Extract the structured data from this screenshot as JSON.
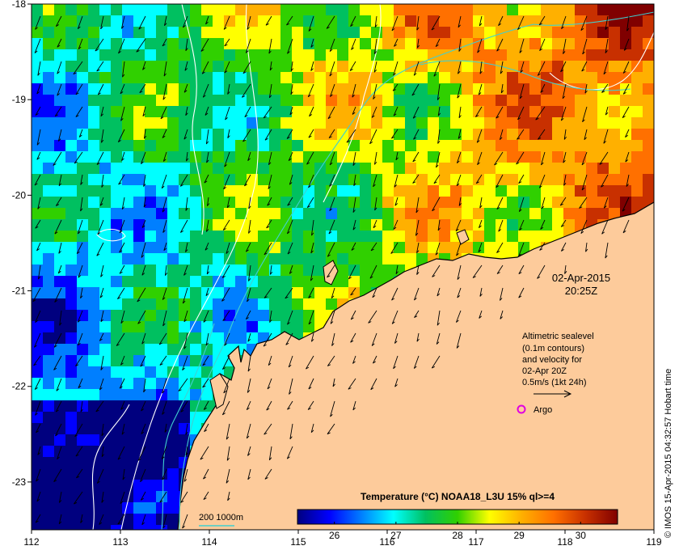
{
  "map": {
    "lon_range": [
      112,
      119
    ],
    "lat_range": [
      -23.5,
      -18
    ],
    "x_ticks": [
      "112",
      "113",
      "114",
      "115",
      "116",
      "117",
      "118",
      "119"
    ],
    "y_ticks": [
      "-18",
      "-19",
      "-20",
      "-21",
      "-22",
      "-23"
    ],
    "timestamp": {
      "date": "02-Apr-2015",
      "time": "20:25Z"
    },
    "legend_lines": [
      "Altimetric sealevel",
      "(0.1m contours)",
      "and velocity for",
      "02-Apr 20Z",
      "0.5m/s (1kt 24h)"
    ],
    "argo_label": "Argo",
    "depth_label": "200  1000m",
    "credit": "© IMOS 15-Apr-2015 04:32:57 Hobart time",
    "land_color": "#fdcb9b",
    "colorbar": {
      "title": "Temperature (°C) NOAA18_L3U 15% ql>=4",
      "min": 25.4,
      "max": 30.6,
      "ticks": [
        "26",
        "27",
        "28",
        "29",
        "30"
      ],
      "colors": [
        "#00007f",
        "#0000ff",
        "#007fff",
        "#00ffff",
        "#00c060",
        "#30d000",
        "#ffff00",
        "#ffb000",
        "#ff7000",
        "#c83000",
        "#800000"
      ]
    }
  }
}
